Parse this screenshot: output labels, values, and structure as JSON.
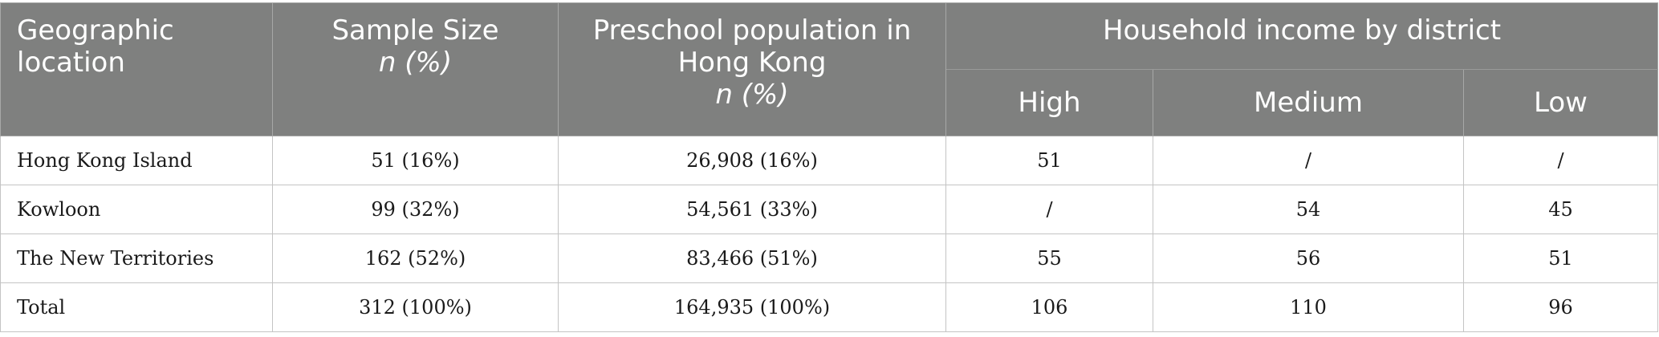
{
  "header": {
    "geographic_location": "Geographic location",
    "sample_size": "Sample Size",
    "sample_size_unit": "n (%)",
    "preschool_population": "Preschool population in Hong Kong",
    "preschool_population_unit": "n (%)",
    "household_income": "Household income by district",
    "income_levels": [
      "High",
      "Medium",
      "Low"
    ]
  },
  "rows": [
    {
      "location": "Hong Kong Island",
      "sample": "51 (16%)",
      "population": "26,908 (16%)",
      "high": "51",
      "medium": "/",
      "low": "/"
    },
    {
      "location": "Kowloon",
      "sample": "99 (32%)",
      "population": "54,561 (33%)",
      "high": "/",
      "medium": "54",
      "low": "45"
    },
    {
      "location": "The New Territories",
      "sample": "162 (52%)",
      "population": "83,466 (51%)",
      "high": "55",
      "medium": "56",
      "low": "51"
    },
    {
      "location": "Total",
      "sample": "312 (100%)",
      "population": "164,935 (100%)",
      "high": "106",
      "medium": "110",
      "low": "96"
    }
  ],
  "colors": {
    "header_background": "#7f807f",
    "header_text": "#ffffff",
    "body_text": "#1a1a1a",
    "grid_line": "#c4c4c4"
  }
}
